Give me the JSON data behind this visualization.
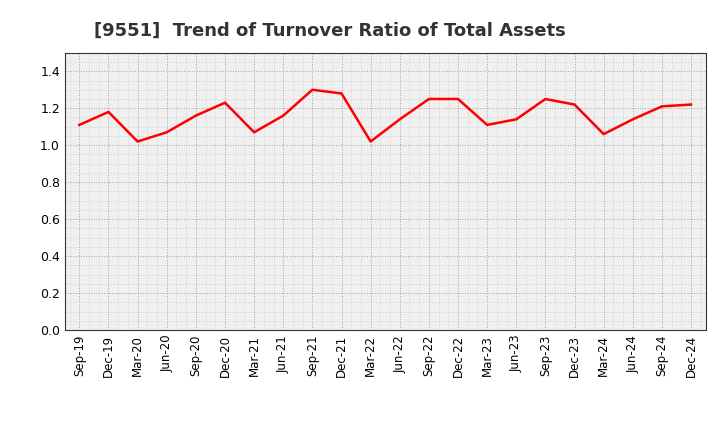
{
  "title": "[9551]  Trend of Turnover Ratio of Total Assets",
  "line_color": "#ff0000",
  "background_color": "#ffffff",
  "plot_bg_color": "#f0f0f0",
  "grid_color": "#999999",
  "ylim": [
    0.0,
    1.5
  ],
  "yticks": [
    0.0,
    0.2,
    0.4,
    0.6,
    0.8,
    1.0,
    1.2,
    1.4
  ],
  "labels": [
    "Sep-19",
    "Dec-19",
    "Mar-20",
    "Jun-20",
    "Sep-20",
    "Dec-20",
    "Mar-21",
    "Jun-21",
    "Sep-21",
    "Dec-21",
    "Mar-22",
    "Jun-22",
    "Sep-22",
    "Dec-22",
    "Mar-23",
    "Jun-23",
    "Sep-23",
    "Dec-23",
    "Mar-24",
    "Jun-24",
    "Sep-24",
    "Dec-24"
  ],
  "values": [
    1.11,
    1.18,
    1.02,
    1.07,
    1.16,
    1.23,
    1.07,
    1.16,
    1.3,
    1.28,
    1.02,
    1.14,
    1.25,
    1.25,
    1.11,
    1.14,
    1.25,
    1.22,
    1.06,
    1.14,
    1.21,
    1.22
  ],
  "title_fontsize": 13,
  "tick_fontsize": 8.5,
  "line_width": 1.8
}
